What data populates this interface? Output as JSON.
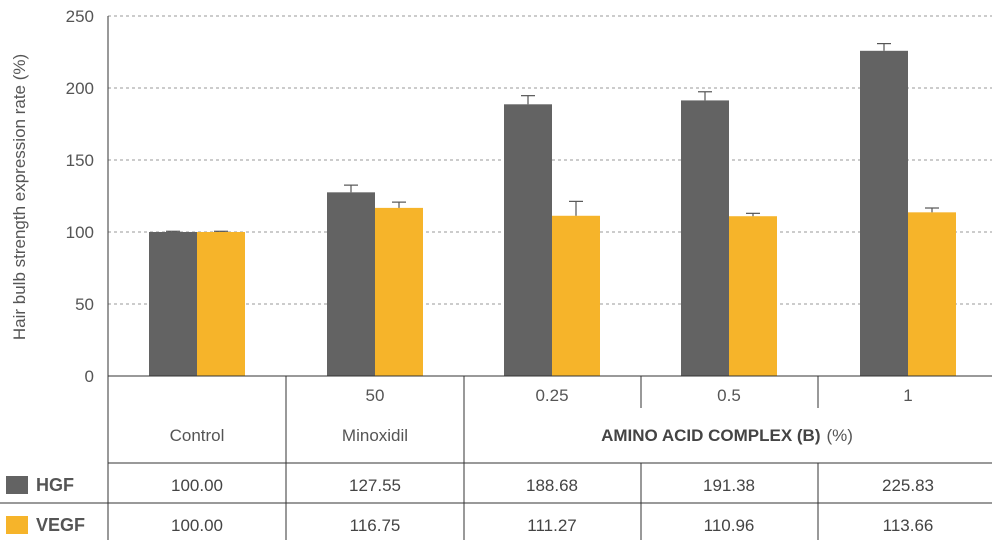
{
  "chart_data": {
    "type": "bar",
    "ylabel": "Hair bulb strength expression rate (%)",
    "ylim": [
      0,
      250
    ],
    "yticks": [
      0,
      50,
      100,
      150,
      200,
      250
    ],
    "grid": true,
    "categories": [
      "Control",
      "50",
      "0.25",
      "0.5",
      "1"
    ],
    "group_labels": {
      "control": "Control",
      "minoxidil": "Minoxidil",
      "complex_bold": "AMINO ACID COMPLEX (B)",
      "complex_unit": "(%)"
    },
    "series": [
      {
        "name": "HGF",
        "color": "#636363",
        "values": [
          100.0,
          127.55,
          188.68,
          191.38,
          225.83
        ],
        "errors": [
          0.5,
          5,
          6,
          6,
          5
        ],
        "labels": [
          "100.00",
          "127.55",
          "188.68",
          "191.38",
          "225.83"
        ]
      },
      {
        "name": "VEGF",
        "color": "#f6b42a",
        "values": [
          100.0,
          116.75,
          111.27,
          110.96,
          113.66
        ],
        "errors": [
          0.5,
          4,
          10,
          2,
          3
        ],
        "labels": [
          "100.00",
          "116.75",
          "111.27",
          "110.96",
          "113.66"
        ]
      }
    ]
  }
}
